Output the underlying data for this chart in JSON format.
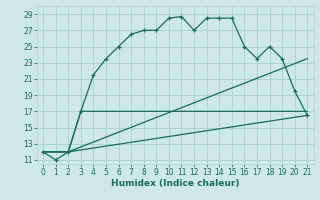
{
  "xlabel": "Humidex (Indice chaleur)",
  "xlim": [
    -0.5,
    21.5
  ],
  "ylim": [
    10.5,
    30
  ],
  "yticks": [
    11,
    13,
    15,
    17,
    19,
    21,
    23,
    25,
    27,
    29
  ],
  "xticks": [
    0,
    1,
    2,
    3,
    4,
    5,
    6,
    7,
    8,
    9,
    10,
    11,
    12,
    13,
    14,
    15,
    16,
    17,
    18,
    19,
    20,
    21
  ],
  "bg_color": "#cde8e5",
  "grid_color": "#a8d4d0",
  "line_color": "#1a6b5a",
  "series1_x": [
    0,
    1,
    2,
    3,
    4,
    5,
    6,
    7,
    8,
    9,
    10,
    11,
    12,
    13,
    14,
    15,
    16,
    17,
    18,
    19,
    20,
    21
  ],
  "series1_y": [
    12,
    11,
    12,
    17,
    21.5,
    23.5,
    25,
    26.5,
    27,
    27,
    28.5,
    28.7,
    27,
    28.5,
    28.5,
    28.5,
    25,
    23.5,
    25,
    23.5,
    19.5,
    16.5
  ],
  "series2_x": [
    0,
    2,
    3,
    21
  ],
  "series2_y": [
    12,
    12,
    17,
    17
  ],
  "series3_x": [
    0,
    2,
    21
  ],
  "series3_y": [
    12,
    12,
    23.5
  ],
  "series4_x": [
    0,
    2,
    21
  ],
  "series4_y": [
    12,
    12,
    16.5
  ]
}
